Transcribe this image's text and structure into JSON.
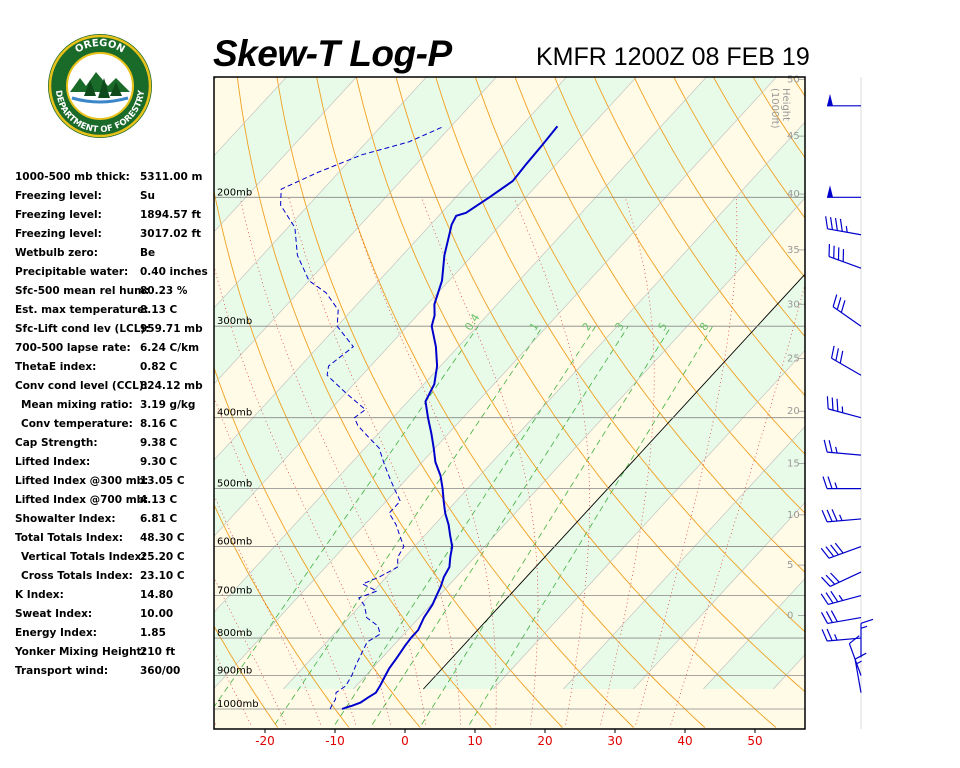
{
  "header": {
    "title": "Skew-T Log-P",
    "station": "KMFR 1200Z 08 FEB 19",
    "logo_text": "OREGON DEPARTMENT OF FORESTRY"
  },
  "params": [
    {
      "label": "1000-500 mb thick:",
      "value": "5311.00 m"
    },
    {
      "label": "Freezing level:",
      "value": "Su"
    },
    {
      "label": "Freezing level:",
      "value": "1894.57 ft"
    },
    {
      "label": "Freezing level:",
      "value": "3017.02 ft"
    },
    {
      "label": "Wetbulb zero:",
      "value": "Be"
    },
    {
      "label": "Precipitable water:",
      "value": "0.40 inches"
    },
    {
      "label": "Sfc-500 mean rel hum:",
      "value": "80.23 %"
    },
    {
      "label": "Est. max temperature:",
      "value": "8.13 C"
    },
    {
      "label": "Sfc-Lift cond lev (LCL):",
      "value": "959.71 mb"
    },
    {
      "label": "700-500 lapse rate:",
      "value": "6.24 C/km"
    },
    {
      "label": "ThetaE index:",
      "value": "0.82 C"
    },
    {
      "label": "Conv cond level (CCL):",
      "value": "824.12 mb"
    },
    {
      "label": "Mean mixing ratio:",
      "value": "3.19 g/kg",
      "indent": true
    },
    {
      "label": "Conv temperature:",
      "value": "8.16 C",
      "indent": true
    },
    {
      "label": "Cap Strength:",
      "value": "9.38 C"
    },
    {
      "label": "Lifted Index:",
      "value": "9.30 C"
    },
    {
      "label": "Lifted Index @300 mb:",
      "value": "13.05 C"
    },
    {
      "label": "Lifted Index @700 mb:",
      "value": "4.13 C"
    },
    {
      "label": "Showalter Index:",
      "value": "6.81 C"
    },
    {
      "label": "Total Totals Index:",
      "value": "48.30 C"
    },
    {
      "label": "Vertical Totals Index:",
      "value": "25.20 C",
      "indent": true
    },
    {
      "label": "Cross Totals Index:",
      "value": "23.10 C",
      "indent": true
    },
    {
      "label": "K Index:",
      "value": "14.80"
    },
    {
      "label": "Sweat Index:",
      "value": "10.00"
    },
    {
      "label": "Energy Index:",
      "value": "1.85"
    },
    {
      "label": "Yonker Mixing Height:",
      "value": "210 ft"
    },
    {
      "label": "Transport wind:",
      "value": "360/00"
    }
  ],
  "chart_data": {
    "type": "line",
    "skew_t": true,
    "x_axis": {
      "ticks": [
        -20,
        -10,
        0,
        10,
        20,
        30,
        40,
        50
      ],
      "range": [
        -27,
        56
      ]
    },
    "pressure_levels": [
      {
        "p": 200,
        "label": "200mb"
      },
      {
        "p": 300,
        "label": "300mb"
      },
      {
        "p": 400,
        "label": "400mb"
      },
      {
        "p": 500,
        "label": "500mb"
      },
      {
        "p": 600,
        "label": "600mb"
      },
      {
        "p": 700,
        "label": "700mb"
      },
      {
        "p": 800,
        "label": "800mb"
      },
      {
        "p": 900,
        "label": "900mb"
      },
      {
        "p": 1000,
        "label": "1000mb"
      }
    ],
    "height_axis": {
      "label_line1": "Height",
      "label_line2": "(1000ft)",
      "ticks": [
        {
          "ft": 50,
          "p": 138
        },
        {
          "ft": 45,
          "p": 165
        },
        {
          "ft": 40,
          "p": 198
        },
        {
          "ft": 35,
          "p": 236
        },
        {
          "ft": 30,
          "p": 280
        },
        {
          "ft": 25,
          "p": 332
        },
        {
          "ft": 20,
          "p": 392
        },
        {
          "ft": 15,
          "p": 462
        },
        {
          "ft": 10,
          "p": 543
        },
        {
          "ft": 5,
          "p": 636
        },
        {
          "ft": 0,
          "p": 745
        }
      ]
    },
    "mixing_ratio_lines": [
      "0.4",
      "1",
      "2",
      "3",
      "5",
      "8"
    ],
    "series": [
      {
        "key": "temperature",
        "color": "#0000cc",
        "points": [
          [
            1000,
            -9
          ],
          [
            995,
            -8.6
          ],
          [
            990,
            -8
          ],
          [
            980,
            -7.2
          ],
          [
            965,
            -6.8
          ],
          [
            950,
            -6.3
          ],
          [
            930,
            -6.6
          ],
          [
            900,
            -7.2
          ],
          [
            880,
            -7.6
          ],
          [
            850,
            -7.9
          ],
          [
            820,
            -8.3
          ],
          [
            800,
            -8.5
          ],
          [
            780,
            -8.5
          ],
          [
            750,
            -9.3
          ],
          [
            720,
            -9.8
          ],
          [
            700,
            -10.4
          ],
          [
            680,
            -11
          ],
          [
            660,
            -11.8
          ],
          [
            640,
            -12.3
          ],
          [
            620,
            -13.5
          ],
          [
            600,
            -14.6
          ],
          [
            580,
            -16.3
          ],
          [
            560,
            -18
          ],
          [
            540,
            -20
          ],
          [
            520,
            -21.8
          ],
          [
            500,
            -23.6
          ],
          [
            480,
            -25.6
          ],
          [
            460,
            -28.1
          ],
          [
            440,
            -30.2
          ],
          [
            420,
            -32.5
          ],
          [
            400,
            -35
          ],
          [
            380,
            -37.5
          ],
          [
            360,
            -38.5
          ],
          [
            340,
            -40.5
          ],
          [
            320,
            -43.2
          ],
          [
            300,
            -46.5
          ],
          [
            290,
            -47.5
          ],
          [
            280,
            -49
          ],
          [
            260,
            -51
          ],
          [
            240,
            -54
          ],
          [
            225,
            -56
          ],
          [
            218,
            -57
          ],
          [
            212,
            -57.5
          ],
          [
            210,
            -56.5
          ],
          [
            200,
            -55.2
          ],
          [
            190,
            -54
          ],
          [
            180,
            -54.3
          ],
          [
            170,
            -54.5
          ],
          [
            160,
            -54.8
          ]
        ]
      },
      {
        "key": "dewpoint",
        "color": "#0000cc",
        "dashed": true,
        "points": [
          [
            1000,
            -10.7
          ],
          [
            985,
            -11
          ],
          [
            970,
            -11.2
          ],
          [
            950,
            -12
          ],
          [
            930,
            -11.5
          ],
          [
            900,
            -12
          ],
          [
            870,
            -12.8
          ],
          [
            840,
            -13.5
          ],
          [
            810,
            -14.2
          ],
          [
            790,
            -13.4
          ],
          [
            770,
            -14.8
          ],
          [
            750,
            -17.5
          ],
          [
            735,
            -18.5
          ],
          [
            720,
            -19.6
          ],
          [
            705,
            -21.2
          ],
          [
            690,
            -19.5
          ],
          [
            675,
            -22.5
          ],
          [
            660,
            -21
          ],
          [
            640,
            -19.7
          ],
          [
            620,
            -21
          ],
          [
            600,
            -21.5
          ],
          [
            580,
            -23.5
          ],
          [
            560,
            -25.5
          ],
          [
            540,
            -28
          ],
          [
            520,
            -28
          ],
          [
            500,
            -30.5
          ],
          [
            480,
            -33
          ],
          [
            460,
            -35.5
          ],
          [
            440,
            -38
          ],
          [
            425,
            -41
          ],
          [
            410,
            -44
          ],
          [
            400,
            -45.5
          ],
          [
            390,
            -45
          ],
          [
            370,
            -50
          ],
          [
            350,
            -55
          ],
          [
            340,
            -56
          ],
          [
            320,
            -55
          ],
          [
            300,
            -60
          ],
          [
            285,
            -62
          ],
          [
            270,
            -66
          ],
          [
            260,
            -70
          ],
          [
            240,
            -75
          ],
          [
            220,
            -79
          ],
          [
            205,
            -84
          ],
          [
            195,
            -86
          ],
          [
            185,
            -83
          ],
          [
            175,
            -79
          ],
          [
            168,
            -74
          ],
          [
            160,
            -71
          ]
        ]
      }
    ],
    "wind_barbs": [
      {
        "p": 950,
        "dir": 350,
        "spd": 15
      },
      {
        "p": 900,
        "dir": 340,
        "spd": 10
      },
      {
        "p": 850,
        "dir": 0,
        "spd": 15
      },
      {
        "p": 800,
        "dir": 265,
        "spd": 25
      },
      {
        "p": 750,
        "dir": 260,
        "spd": 30
      },
      {
        "p": 700,
        "dir": 255,
        "spd": 35
      },
      {
        "p": 650,
        "dir": 245,
        "spd": 30
      },
      {
        "p": 600,
        "dir": 250,
        "spd": 40
      },
      {
        "p": 550,
        "dir": 265,
        "spd": 35
      },
      {
        "p": 500,
        "dir": 270,
        "spd": 25
      },
      {
        "p": 450,
        "dir": 275,
        "spd": 25
      },
      {
        "p": 400,
        "dir": 285,
        "spd": 35
      },
      {
        "p": 350,
        "dir": 300,
        "spd": 30
      },
      {
        "p": 300,
        "dir": 305,
        "spd": 30
      },
      {
        "p": 250,
        "dir": 290,
        "spd": 40
      },
      {
        "p": 225,
        "dir": 280,
        "spd": 45
      },
      {
        "p": 200,
        "dir": 270,
        "spd": 50
      },
      {
        "p": 150,
        "dir": 270,
        "spd": 50
      }
    ]
  }
}
